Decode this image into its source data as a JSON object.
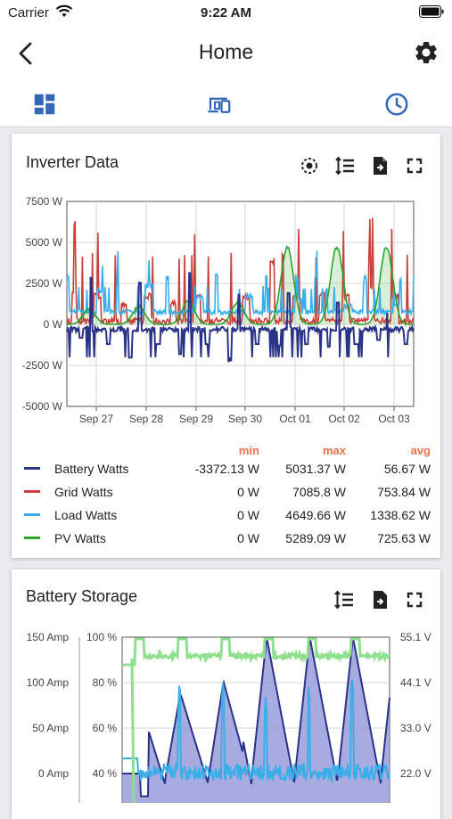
{
  "status": {
    "carrier": "Carrier",
    "time": "9:22 AM"
  },
  "nav": {
    "title": "Home"
  },
  "tabs": [
    {
      "icon": "dashboard-icon"
    },
    {
      "icon": "devices-icon"
    },
    {
      "icon": "clock-icon"
    }
  ],
  "colors": {
    "accent": "#3367b8",
    "battery": "#2a3388",
    "grid": "#c9403a",
    "load": "#3aaee8",
    "pv": "#2aa52a",
    "stats_header": "#e8724a",
    "storage_fill": "#8b8fd6",
    "voltage": "#8ee08e"
  },
  "inverter": {
    "title": "Inverter Data",
    "tools": [
      "center-focus-icon",
      "sort-lines-icon",
      "export-file-icon",
      "fullscreen-icon"
    ],
    "chart_data": {
      "type": "line",
      "y_ticks": [
        "7500 W",
        "5000 W",
        "2500 W",
        "0 W",
        "-2500 W",
        "-5000 W"
      ],
      "ylim": [
        -5000,
        7500
      ],
      "x_ticks": [
        "Sep 27",
        "Sep 28",
        "Sep 29",
        "Sep 30",
        "Oct 01",
        "Oct 02",
        "Oct 03"
      ],
      "grid": true,
      "series": [
        {
          "name": "Battery Watts",
          "min": "-3372.13 W",
          "max": "5031.37 W",
          "avg": "56.67 W"
        },
        {
          "name": "Grid Watts",
          "min": "0 W",
          "max": "7085.8 W",
          "avg": "753.84 W"
        },
        {
          "name": "Load Watts",
          "min": "0 W",
          "max": "4649.66 W",
          "avg": "1338.62 W"
        },
        {
          "name": "PV Watts",
          "min": "0 W",
          "max": "5289.09 W",
          "avg": "725.63 W"
        }
      ]
    },
    "stats_headers": {
      "min": "min",
      "max": "max",
      "avg": "avg"
    }
  },
  "storage": {
    "title": "Battery Storage",
    "tools": [
      "sort-lines-icon",
      "export-file-icon",
      "fullscreen-icon"
    ],
    "chart_data": {
      "type": "area",
      "left_ticks_amp": [
        "150 Amp",
        "100 Amp",
        "50 Amp",
        "0 Amp"
      ],
      "left_ticks_pct": [
        "100 %",
        "80 %",
        "60 %",
        "40 %"
      ],
      "right_ticks_volt": [
        "55.1 V",
        "44.1 V",
        "33.0 V",
        "22.0 V"
      ]
    }
  }
}
